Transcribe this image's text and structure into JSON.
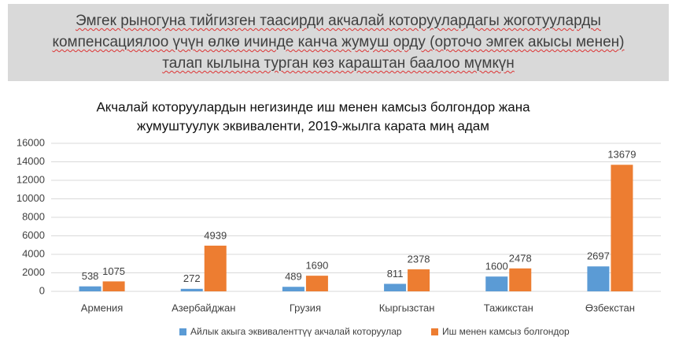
{
  "header": {
    "lines": [
      "Эмгек рыногуна тийгизген таасирди акчалай которуулардагы жоготууларды",
      "компенсациялоо үчүн өлкө ичинде канча жумуш орду (орточо эмгек акысы менен)",
      "талап кылына турган көз караштан баалоо мүмкүн"
    ]
  },
  "chart_data": {
    "type": "bar",
    "title": [
      "Акчалай которуулардын негизинде иш менен камсыз болгондор жана",
      "жумуштуулук эквиваленти, 2019-жылга карата миң адам"
    ],
    "categories": [
      "Армения",
      "Азербайджан",
      "Грузия",
      "Кыргызстан",
      "Тажикстан",
      "Өзбекстан"
    ],
    "series": [
      {
        "name": "Айлык акыга эквиваленттүү акчалай которуулар",
        "color": "#5b9bd5",
        "values": [
          538,
          272,
          489,
          811,
          1600,
          2697
        ]
      },
      {
        "name": "Иш менен камсыз болгондор",
        "color": "#ed7d31",
        "values": [
          1075,
          4939,
          1690,
          2378,
          2478,
          13679
        ]
      }
    ],
    "ylim": [
      0,
      16000
    ],
    "yticks": [
      0,
      2000,
      4000,
      6000,
      8000,
      10000,
      12000,
      14000,
      16000
    ],
    "grid": true,
    "legend": "bottom"
  }
}
